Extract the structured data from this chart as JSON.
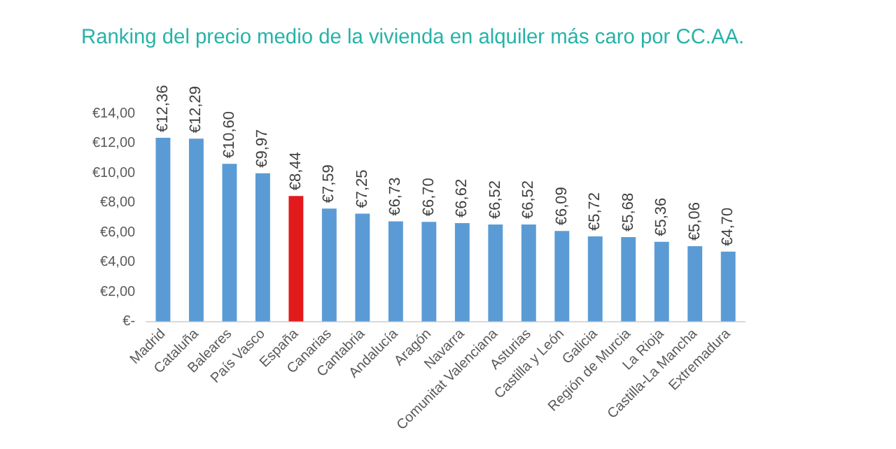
{
  "chart_data": {
    "type": "bar",
    "title": "Ranking del precio medio de la vivienda en alquiler más caro por CC.AA.",
    "categories": [
      "Madrid",
      "Cataluña",
      "Baleares",
      "País Vasco",
      "España",
      "Canarias",
      "Cantabria",
      "Andalucía",
      "Aragón",
      "Navarra",
      "Comunitat Valenciana",
      "Asturias",
      "Castilla y León",
      "Galicia",
      "Región de Murcia",
      "La Rioja",
      "Castilla-La Mancha",
      "Extremadura"
    ],
    "values": [
      12.36,
      12.29,
      10.6,
      9.97,
      8.44,
      7.59,
      7.25,
      6.73,
      6.7,
      6.62,
      6.52,
      6.52,
      6.09,
      5.72,
      5.68,
      5.36,
      5.06,
      4.7
    ],
    "value_labels": [
      "€12,36",
      "€12,29",
      "€10,60",
      "€9,97",
      "€8,44",
      "€7,59",
      "€7,25",
      "€6,73",
      "€6,70",
      "€6,62",
      "€6,52",
      "€6,52",
      "€6,09",
      "€5,72",
      "€5,68",
      "€5,36",
      "€5,06",
      "€4,70"
    ],
    "colors": [
      "#5b9bd5",
      "#5b9bd5",
      "#5b9bd5",
      "#5b9bd5",
      "#e31a1c",
      "#5b9bd5",
      "#5b9bd5",
      "#5b9bd5",
      "#5b9bd5",
      "#5b9bd5",
      "#5b9bd5",
      "#5b9bd5",
      "#5b9bd5",
      "#5b9bd5",
      "#5b9bd5",
      "#5b9bd5",
      "#5b9bd5",
      "#5b9bd5"
    ],
    "ylim": [
      0,
      14
    ],
    "yticks": [
      {
        "value": 0,
        "label": "€-"
      },
      {
        "value": 2,
        "label": "€2,00"
      },
      {
        "value": 4,
        "label": "€4,00"
      },
      {
        "value": 6,
        "label": "€6,00"
      },
      {
        "value": 8,
        "label": "€8,00"
      },
      {
        "value": 10,
        "label": "€10,00"
      },
      {
        "value": 12,
        "label": "€12,00"
      },
      {
        "value": 14,
        "label": "€14,00"
      }
    ],
    "grid": false,
    "legend": false
  }
}
